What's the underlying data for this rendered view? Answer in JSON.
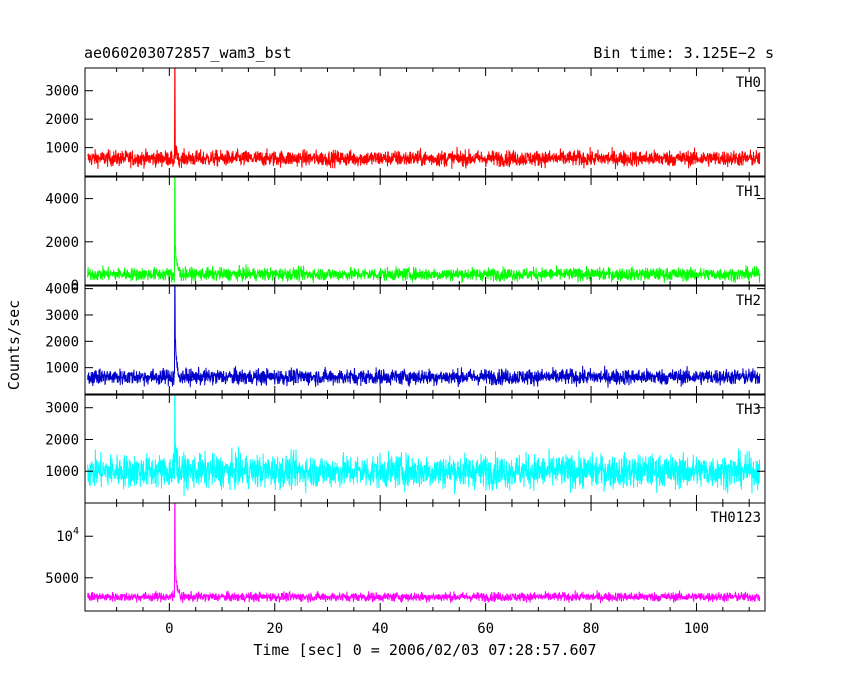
{
  "chart_data": {
    "type": "line",
    "title_left": "ae060203072857_wam3_bst",
    "title_right": "Bin time: 3.125E−2 s",
    "xlabel": "Time [sec] 0 = 2006/02/03 07:28:57.607",
    "ylabel": "Counts/sec",
    "xlim": [
      -16,
      113
    ],
    "x_data_range": [
      -15.5,
      112
    ],
    "x_ticks": [
      0,
      20,
      40,
      60,
      80,
      100
    ],
    "burst_time": 1.0,
    "panels": [
      {
        "name": "TH0",
        "color": "#ff0000",
        "ylim": [
          0,
          3800
        ],
        "y_ticks": [
          {
            "v": 1000,
            "label": "1000"
          },
          {
            "v": 2000,
            "label": "2000"
          },
          {
            "v": 3000,
            "label": "3000"
          }
        ],
        "baseline": 620,
        "noise": 140,
        "peak": 3800,
        "tail": 900
      },
      {
        "name": "TH1",
        "color": "#00ff00",
        "ylim": [
          0,
          5000
        ],
        "y_ticks": [
          {
            "v": 0,
            "label": "0"
          },
          {
            "v": 2000,
            "label": "2000"
          },
          {
            "v": 4000,
            "label": "4000"
          }
        ],
        "baseline": 500,
        "noise": 150,
        "peak": 5000,
        "tail": 1800
      },
      {
        "name": "TH2",
        "color": "#0000cc",
        "ylim": [
          0,
          4100
        ],
        "y_ticks": [
          {
            "v": 1000,
            "label": "1000"
          },
          {
            "v": 2000,
            "label": "2000"
          },
          {
            "v": 3000,
            "label": "3000"
          },
          {
            "v": 4000,
            "label": "4000"
          }
        ],
        "baseline": 650,
        "noise": 150,
        "peak": 4100,
        "tail": 2000
      },
      {
        "name": "TH3",
        "color": "#00ffff",
        "ylim": [
          0,
          3400
        ],
        "y_ticks": [
          {
            "v": 1000,
            "label": "1000"
          },
          {
            "v": 2000,
            "label": "2000"
          },
          {
            "v": 3000,
            "label": "3000"
          }
        ],
        "baseline": 1000,
        "noise": 260,
        "peak": 3400,
        "tail": 1800
      },
      {
        "name": "TH0123",
        "color": "#ff00ff",
        "ylim": [
          1000,
          14000
        ],
        "y_ticks": [
          {
            "v": 5000,
            "label": "5000"
          },
          {
            "v": 10000,
            "label": "10",
            "sup": "4"
          }
        ],
        "baseline": 2700,
        "noise": 280,
        "peak": 14000,
        "tail": 6500
      }
    ]
  }
}
